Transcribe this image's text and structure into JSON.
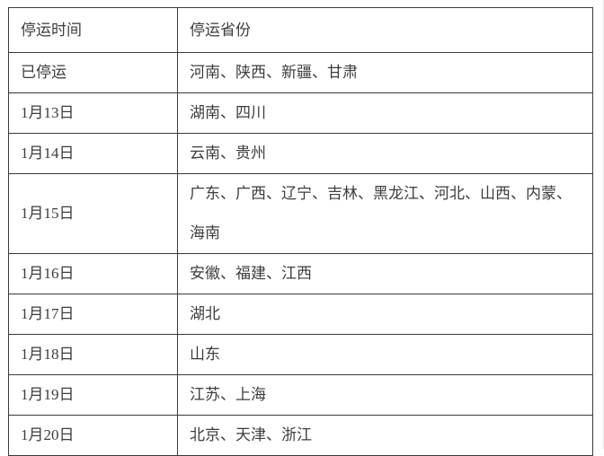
{
  "table": {
    "border_color": "#3a3a3a",
    "text_color": "#3d3d3d",
    "columns": [
      {
        "label": "停运时间"
      },
      {
        "label": "停运省份"
      }
    ],
    "rows": [
      {
        "time": "已停运",
        "provinces": "河南、陕西、新疆、甘肃"
      },
      {
        "time": "1月13日",
        "provinces": "湖南、四川"
      },
      {
        "time": "1月14日",
        "provinces": "云南、贵州"
      },
      {
        "time": "1月15日",
        "provinces": "广东、广西、辽宁、吉林、黑龙江、河北、山西、内蒙、海南"
      },
      {
        "time": "1月16日",
        "provinces": "安徽、福建、江西"
      },
      {
        "time": "1月17日",
        "provinces": "湖北"
      },
      {
        "time": "1月18日",
        "provinces": "山东"
      },
      {
        "time": "1月19日",
        "provinces": "江苏、上海"
      },
      {
        "time": "1月20日",
        "provinces": "北京、天津、浙江"
      }
    ]
  }
}
